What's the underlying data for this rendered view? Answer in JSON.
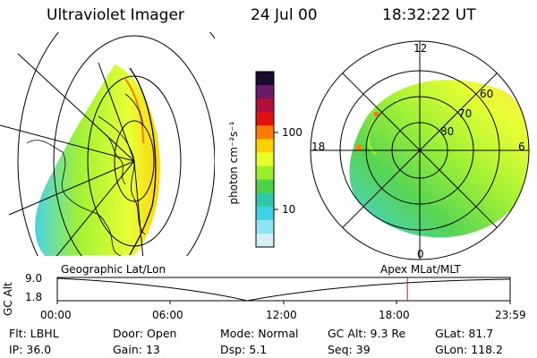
{
  "header": {
    "title": "Ultraviolet Imager",
    "date": "24 Jul 00",
    "time": "18:32:22 UT"
  },
  "colorbar": {
    "label": "photon cm⁻²s⁻¹",
    "ticks": [
      "100",
      "10"
    ],
    "colors": [
      "#1a0a2e",
      "#6b1a6b",
      "#b0103a",
      "#e01010",
      "#ff7a00",
      "#ffd000",
      "#e6ff2a",
      "#9cf02a",
      "#4cd24a",
      "#2ec8a6",
      "#3fd0e6",
      "#8ee4f2",
      "#d6eef5"
    ]
  },
  "left_panel": {
    "caption": "Geographic Lat/Lon"
  },
  "right_panel": {
    "caption": "Apex MLat/MLT",
    "mlt_labels": {
      "top": "12",
      "left": "18",
      "right": "6",
      "bottom": "0"
    },
    "lat_labels": [
      "60",
      "70",
      "80"
    ]
  },
  "timeline": {
    "ylabel": "GC Alt",
    "yticks": [
      "9.0",
      "1.8"
    ],
    "xticks": [
      "00:00",
      "06:00",
      "12:00",
      "18:00",
      "23:59"
    ],
    "marker_fraction": 0.773
  },
  "info": [
    [
      {
        "k": "Flt:",
        "v": "LBHL"
      },
      {
        "k": "Door:",
        "v": "Open"
      },
      {
        "k": "Mode:",
        "v": "Normal"
      },
      {
        "k": "GC Alt:",
        "v": "9.3 Re"
      },
      {
        "k": "GLat:",
        "v": "81.7"
      }
    ],
    [
      {
        "k": "IP:",
        "v": "36.0"
      },
      {
        "k": "Gain:",
        "v": "13"
      },
      {
        "k": "Dsp:",
        "v": "5.1"
      },
      {
        "k": "Seq:",
        "v": "39"
      },
      {
        "k": "GLon:",
        "v": "118.2"
      }
    ]
  ]
}
